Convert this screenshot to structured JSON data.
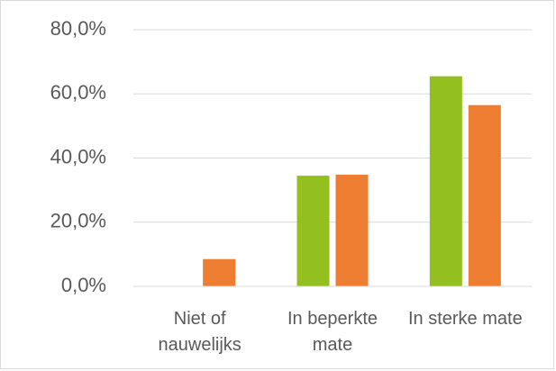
{
  "chart_data": {
    "type": "bar",
    "categories": [
      "Niet of nauwelijks",
      "In beperkte mate",
      "In sterke mate"
    ],
    "series": [
      {
        "color": "#93c01f",
        "values": [
          0,
          34.5,
          65.5
        ]
      },
      {
        "color": "#ed7d31",
        "values": [
          8.5,
          34.8,
          56.5
        ]
      }
    ],
    "ylim": [
      0,
      80
    ],
    "yticks": [
      {
        "value": 0,
        "label": "0,0%"
      },
      {
        "value": 20,
        "label": "20,0%"
      },
      {
        "value": 40,
        "label": "40,0%"
      },
      {
        "value": 60,
        "label": "60,0%"
      },
      {
        "value": 80,
        "label": "80,0%"
      }
    ],
    "grid": true
  }
}
